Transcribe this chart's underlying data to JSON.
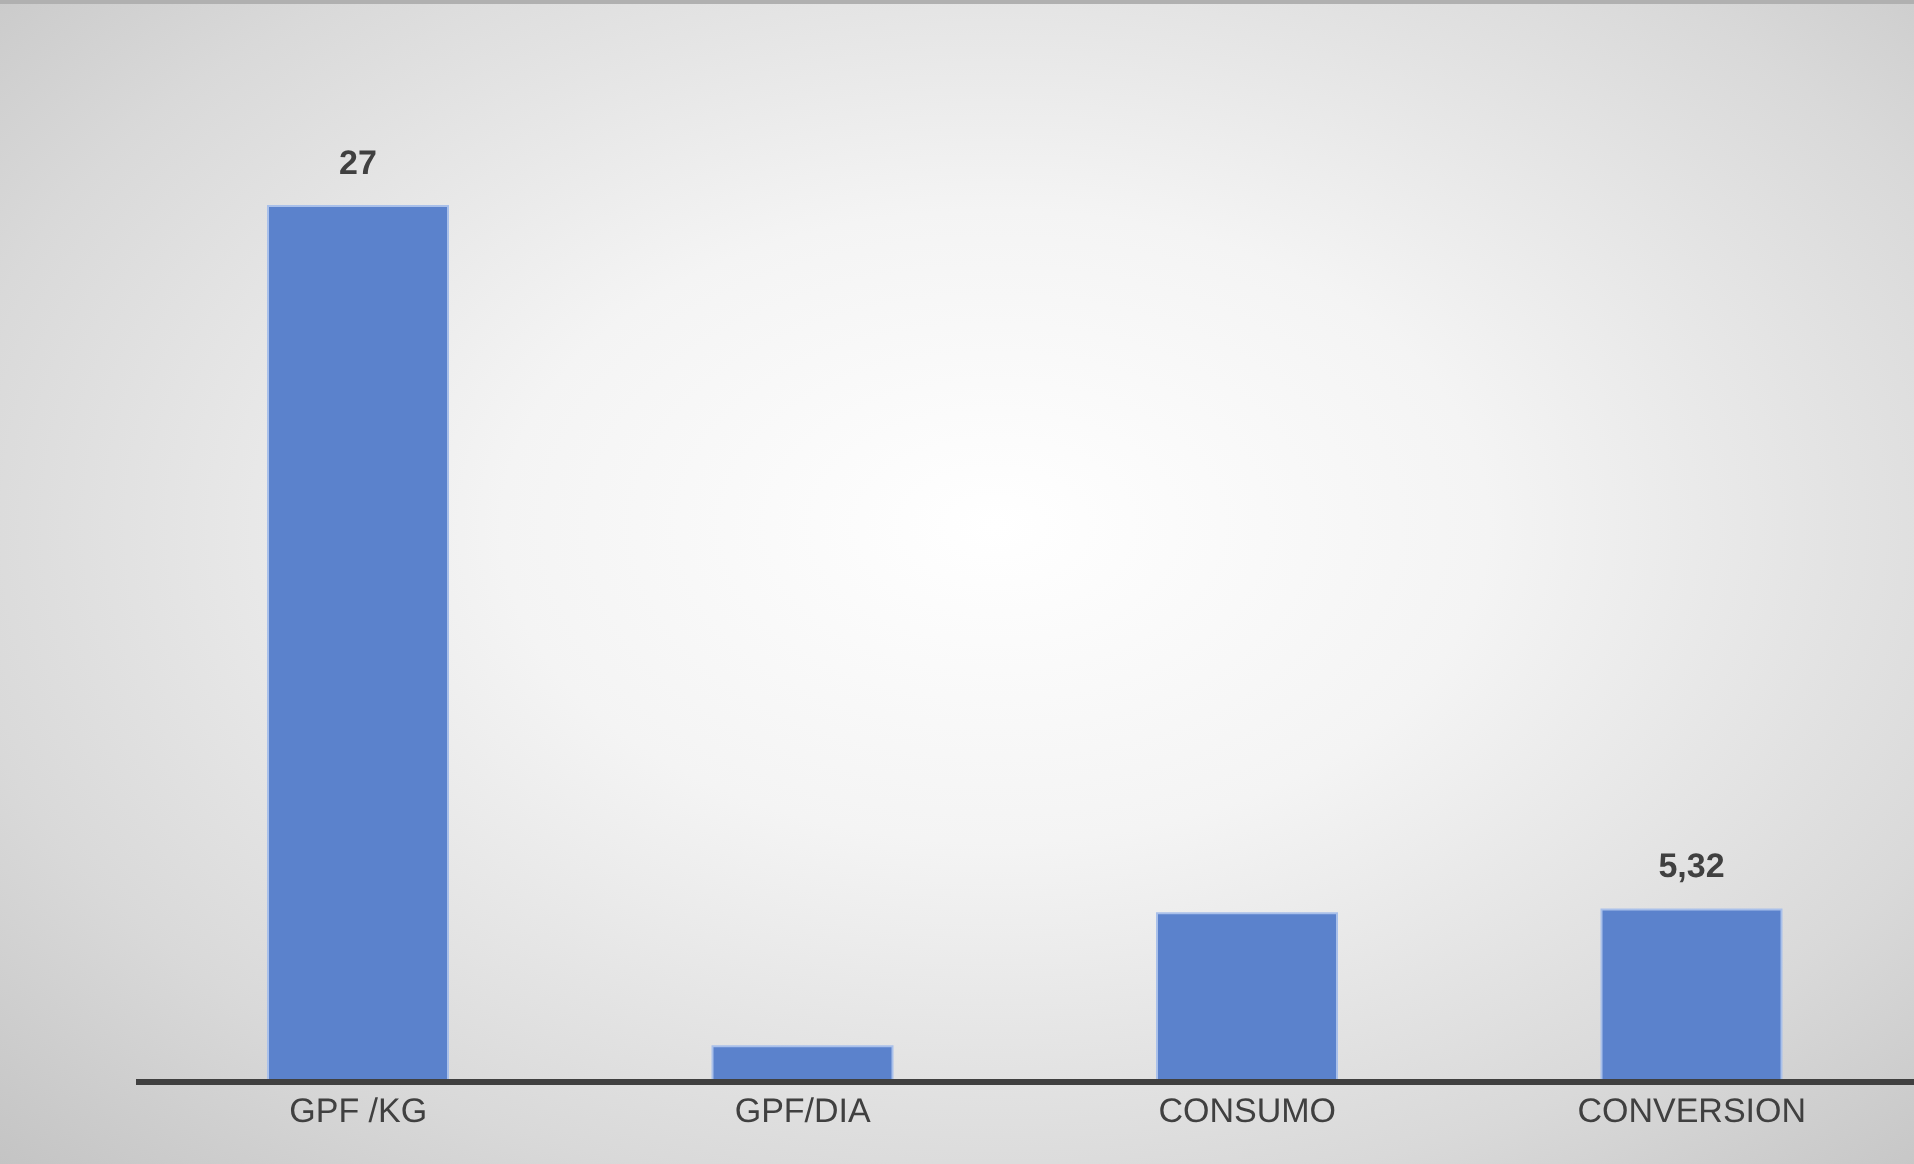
{
  "chart_data": {
    "type": "bar",
    "categories": [
      "GPF /KG",
      "GPF/DIA",
      "CONSUMO",
      "CONVERSION"
    ],
    "values": [
      27,
      1.1,
      5.2,
      5.32
    ],
    "value_labels": [
      "27",
      null,
      null,
      "5,32"
    ],
    "color": "#5b82cc",
    "grid": false,
    "legend": false
  }
}
